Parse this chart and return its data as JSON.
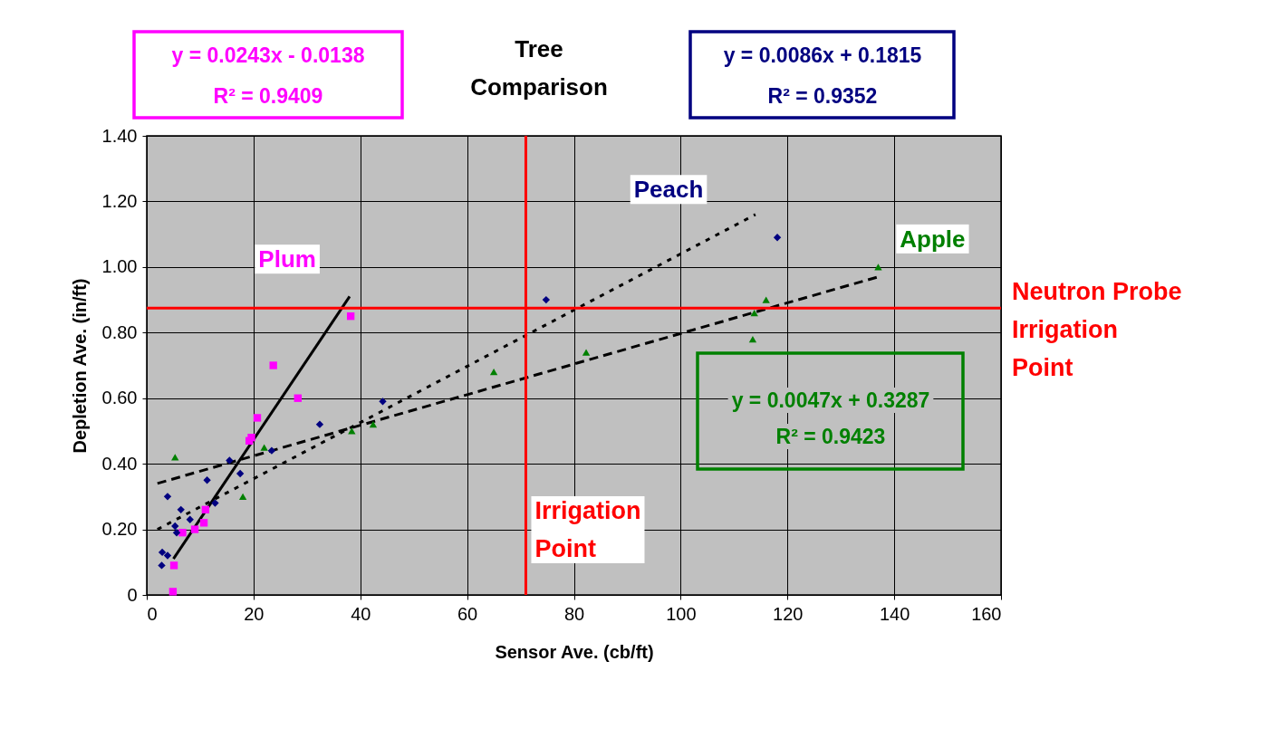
{
  "chart_data": {
    "type": "scatter",
    "title": "Tree Comparison",
    "xlabel": "Sensor Ave. (cb/ft)",
    "ylabel": "Depletion Ave. (in/ft)",
    "xlim": [
      0,
      160
    ],
    "xticks": [
      0,
      20,
      40,
      60,
      80,
      100,
      120,
      140,
      160
    ],
    "ylim": [
      0,
      1.4
    ],
    "yticks": [
      0,
      {
        "value": 0.2,
        "label": "0.20"
      },
      {
        "value": 0.4,
        "label": "0.40"
      },
      {
        "value": 0.6,
        "label": "0.60"
      },
      {
        "value": 0.8,
        "label": "0.80"
      },
      {
        "value": 1.0,
        "label": "1.00"
      },
      {
        "value": 1.2,
        "label": "1.20"
      },
      {
        "value": 1.4,
        "label": "1.40"
      }
    ],
    "grid": true,
    "series": [
      {
        "name": "Plum",
        "color": "#ff00ff",
        "marker": "square",
        "x": [
          4.9,
          5.1,
          6.7,
          9.0,
          10.7,
          11.0,
          19.2,
          19.6,
          20.7,
          23.7,
          28.3,
          38.2
        ],
        "values": [
          0.01,
          0.09,
          0.19,
          0.2,
          0.22,
          0.26,
          0.47,
          0.48,
          0.54,
          0.7,
          0.6,
          0.85
        ]
      },
      {
        "name": "Peach",
        "color": "#000080",
        "marker": "diamond",
        "x": [
          2.8,
          2.9,
          3.9,
          3.9,
          5.3,
          5.6,
          6.4,
          8.1,
          11.3,
          12.8,
          15.5,
          17.5,
          23.4,
          32.4,
          44.2,
          74.8,
          118.1
        ],
        "values": [
          0.09,
          0.13,
          0.12,
          0.3,
          0.21,
          0.19,
          0.26,
          0.23,
          0.35,
          0.28,
          0.41,
          0.37,
          0.44,
          0.52,
          0.59,
          0.9,
          1.09
        ]
      },
      {
        "name": "Apple",
        "color": "#008000",
        "marker": "triangle",
        "x": [
          5.3,
          18.0,
          22.0,
          38.4,
          42.4,
          65.0,
          82.3,
          113.5,
          113.8,
          116.0,
          137.0
        ],
        "values": [
          0.42,
          0.3,
          0.45,
          0.5,
          0.52,
          0.68,
          0.74,
          0.78,
          0.86,
          0.9,
          1.0
        ]
      },
      {
        "type": "line",
        "color": "#000000",
        "line_style": "solid",
        "x": [
          5,
          38
        ],
        "values": [
          0.11,
          0.91
        ]
      },
      {
        "type": "line",
        "color": "#000000",
        "line_style": "dotted",
        "x": [
          2,
          114
        ],
        "values": [
          0.2,
          1.16
        ]
      },
      {
        "type": "line",
        "color": "#000000",
        "line_style": "dashed",
        "x": [
          2,
          137
        ],
        "values": [
          0.34,
          0.97
        ]
      }
    ],
    "ref_lines": [
      {
        "axis": "y",
        "value": 0.875,
        "label": "Neutron Probe Irrigation Point",
        "color": "#ff0000"
      },
      {
        "axis": "x",
        "value": 71,
        "label": "Irrigation Point",
        "color": "#ff0000"
      }
    ],
    "annotations": [
      "y = 0.0243x - 0.0138",
      "R² = 0.9409",
      "y = 0.0086x + 0.1815",
      "R² = 0.9352",
      "y = 0.0047x + 0.3287",
      "R² = 0.9423"
    ]
  }
}
